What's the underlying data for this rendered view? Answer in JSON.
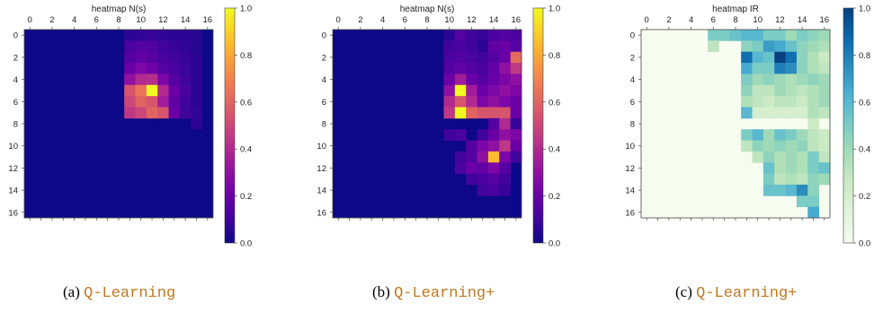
{
  "chart_data": [
    {
      "type": "heatmap",
      "title": "heatmap N(s)",
      "grid_size": 17,
      "x_ticks": [
        "0",
        "2",
        "4",
        "6",
        "8",
        "10",
        "12",
        "14",
        "16"
      ],
      "y_ticks": [
        "0",
        "2",
        "4",
        "6",
        "8",
        "10",
        "12",
        "14",
        "16"
      ],
      "colorbar_ticks": [
        "0.0",
        "0.2",
        "0.4",
        "0.6",
        "0.8",
        "1.0"
      ],
      "colormap": "plasma",
      "vmin": 0,
      "vmax": 1,
      "caption_label": "(a)",
      "caption_method": "Q-Learning",
      "cells": [
        [
          0,
          9,
          0.06
        ],
        [
          0,
          10,
          0.07
        ],
        [
          0,
          11,
          0.08
        ],
        [
          0,
          12,
          0.07
        ],
        [
          0,
          13,
          0.06
        ],
        [
          0,
          14,
          0.06
        ],
        [
          0,
          15,
          0.05
        ],
        [
          1,
          9,
          0.12
        ],
        [
          1,
          10,
          0.15
        ],
        [
          1,
          11,
          0.14
        ],
        [
          1,
          12,
          0.1
        ],
        [
          1,
          13,
          0.08
        ],
        [
          1,
          14,
          0.07
        ],
        [
          1,
          15,
          0.05
        ],
        [
          2,
          9,
          0.15
        ],
        [
          2,
          10,
          0.18
        ],
        [
          2,
          11,
          0.16
        ],
        [
          2,
          12,
          0.12
        ],
        [
          2,
          13,
          0.1
        ],
        [
          2,
          14,
          0.08
        ],
        [
          2,
          15,
          0.06
        ],
        [
          3,
          9,
          0.2
        ],
        [
          3,
          10,
          0.25
        ],
        [
          3,
          11,
          0.22
        ],
        [
          3,
          12,
          0.15
        ],
        [
          3,
          13,
          0.12
        ],
        [
          3,
          14,
          0.09
        ],
        [
          3,
          15,
          0.06
        ],
        [
          4,
          9,
          0.3
        ],
        [
          4,
          10,
          0.4
        ],
        [
          4,
          11,
          0.42
        ],
        [
          4,
          12,
          0.25
        ],
        [
          4,
          13,
          0.15
        ],
        [
          4,
          14,
          0.1
        ],
        [
          4,
          15,
          0.06
        ],
        [
          5,
          9,
          0.55
        ],
        [
          5,
          10,
          0.65
        ],
        [
          5,
          11,
          1.0
        ],
        [
          5,
          12,
          0.4
        ],
        [
          5,
          13,
          0.2
        ],
        [
          5,
          14,
          0.12
        ],
        [
          5,
          15,
          0.06
        ],
        [
          6,
          9,
          0.5
        ],
        [
          6,
          10,
          0.6
        ],
        [
          6,
          11,
          0.55
        ],
        [
          6,
          12,
          0.35
        ],
        [
          6,
          13,
          0.18
        ],
        [
          6,
          14,
          0.1
        ],
        [
          6,
          15,
          0.06
        ],
        [
          7,
          9,
          0.45
        ],
        [
          7,
          10,
          0.5
        ],
        [
          7,
          11,
          0.6
        ],
        [
          7,
          12,
          0.55
        ],
        [
          7,
          13,
          0.2
        ],
        [
          7,
          14,
          0.1
        ],
        [
          7,
          15,
          0.07
        ],
        [
          8,
          15,
          0.06
        ]
      ]
    },
    {
      "type": "heatmap",
      "title": "heatmap N(s)",
      "grid_size": 17,
      "x_ticks": [
        "0",
        "2",
        "4",
        "6",
        "8",
        "10",
        "12",
        "14",
        "16"
      ],
      "y_ticks": [
        "0",
        "2",
        "4",
        "6",
        "8",
        "10",
        "12",
        "14",
        "16"
      ],
      "colorbar_ticks": [
        "0.0",
        "0.2",
        "0.4",
        "0.6",
        "0.8",
        "1.0"
      ],
      "colormap": "plasma",
      "vmin": 0,
      "vmax": 1,
      "caption_label": "(b)",
      "caption_method": "Q-Learning+",
      "cells": [
        [
          0,
          10,
          0.06
        ],
        [
          0,
          11,
          0.15
        ],
        [
          0,
          12,
          0.1
        ],
        [
          0,
          13,
          0.08
        ],
        [
          0,
          14,
          0.12
        ],
        [
          0,
          15,
          0.14
        ],
        [
          0,
          16,
          0.12
        ],
        [
          1,
          10,
          0.1
        ],
        [
          1,
          11,
          0.12
        ],
        [
          1,
          12,
          0.1
        ],
        [
          1,
          13,
          0.06
        ],
        [
          1,
          14,
          0.18
        ],
        [
          1,
          15,
          0.2
        ],
        [
          1,
          16,
          0.15
        ],
        [
          2,
          10,
          0.12
        ],
        [
          2,
          11,
          0.14
        ],
        [
          2,
          12,
          0.12
        ],
        [
          2,
          13,
          0.1
        ],
        [
          2,
          14,
          0.15
        ],
        [
          2,
          15,
          0.2
        ],
        [
          2,
          16,
          0.62
        ],
        [
          3,
          10,
          0.15
        ],
        [
          3,
          11,
          0.18
        ],
        [
          3,
          12,
          0.15
        ],
        [
          3,
          13,
          0.12
        ],
        [
          3,
          14,
          0.18
        ],
        [
          3,
          15,
          0.3
        ],
        [
          3,
          16,
          0.45
        ],
        [
          4,
          10,
          0.2
        ],
        [
          4,
          11,
          0.35
        ],
        [
          4,
          12,
          0.2
        ],
        [
          4,
          13,
          0.15
        ],
        [
          4,
          14,
          0.2
        ],
        [
          4,
          15,
          0.25
        ],
        [
          4,
          16,
          0.3
        ],
        [
          5,
          10,
          0.3
        ],
        [
          5,
          11,
          1.0
        ],
        [
          5,
          12,
          0.35
        ],
        [
          5,
          13,
          0.2
        ],
        [
          5,
          14,
          0.25
        ],
        [
          5,
          15,
          0.3
        ],
        [
          5,
          16,
          0.25
        ],
        [
          6,
          10,
          0.4
        ],
        [
          6,
          11,
          0.55
        ],
        [
          6,
          12,
          0.4
        ],
        [
          6,
          13,
          0.25
        ],
        [
          6,
          14,
          0.3
        ],
        [
          6,
          15,
          0.25
        ],
        [
          6,
          16,
          0.2
        ],
        [
          7,
          10,
          0.45
        ],
        [
          7,
          11,
          1.0
        ],
        [
          7,
          12,
          0.6
        ],
        [
          7,
          13,
          0.55
        ],
        [
          7,
          14,
          0.55
        ],
        [
          7,
          15,
          0.55
        ],
        [
          7,
          16,
          0.2
        ],
        [
          8,
          14,
          0.15
        ],
        [
          8,
          15,
          0.4
        ],
        [
          8,
          16,
          0.08
        ],
        [
          9,
          10,
          0.1
        ],
        [
          9,
          11,
          0.12
        ],
        [
          9,
          13,
          0.1
        ],
        [
          9,
          14,
          0.2
        ],
        [
          9,
          15,
          0.3
        ],
        [
          9,
          16,
          0.25
        ],
        [
          10,
          12,
          0.15
        ],
        [
          10,
          13,
          0.25
        ],
        [
          10,
          14,
          0.3
        ],
        [
          10,
          15,
          0.45
        ],
        [
          10,
          16,
          0.2
        ],
        [
          11,
          11,
          0.1
        ],
        [
          11,
          12,
          0.15
        ],
        [
          11,
          13,
          0.3
        ],
        [
          11,
          14,
          0.85
        ],
        [
          11,
          15,
          0.25
        ],
        [
          11,
          16,
          0.1
        ],
        [
          12,
          11,
          0.12
        ],
        [
          12,
          12,
          0.2
        ],
        [
          12,
          13,
          0.18
        ],
        [
          12,
          14,
          0.25
        ],
        [
          12,
          15,
          0.15
        ],
        [
          13,
          12,
          0.1
        ],
        [
          13,
          13,
          0.12
        ],
        [
          13,
          14,
          0.15
        ],
        [
          13,
          15,
          0.1
        ],
        [
          14,
          13,
          0.1
        ],
        [
          14,
          14,
          0.12
        ],
        [
          14,
          15,
          0.08
        ]
      ]
    },
    {
      "type": "heatmap",
      "title": "heatmap IR",
      "grid_size": 17,
      "x_ticks": [
        "0",
        "2",
        "4",
        "6",
        "8",
        "10",
        "12",
        "14",
        "16"
      ],
      "y_ticks": [
        "0",
        "2",
        "4",
        "6",
        "8",
        "10",
        "12",
        "14",
        "16"
      ],
      "colorbar_ticks": [
        "0.0",
        "0.2",
        "0.4",
        "0.6",
        "0.8",
        "1.0"
      ],
      "colormap": "GnBu",
      "vmin": 0,
      "vmax": 1,
      "caption_label": "(c)",
      "caption_method": "Q-Learning+",
      "cells": [
        [
          0,
          6,
          0.5
        ],
        [
          0,
          7,
          0.5
        ],
        [
          0,
          8,
          0.55
        ],
        [
          0,
          9,
          0.6
        ],
        [
          0,
          10,
          0.6
        ],
        [
          0,
          11,
          0.5
        ],
        [
          0,
          12,
          0.5
        ],
        [
          0,
          13,
          0.4
        ],
        [
          0,
          14,
          0.5
        ],
        [
          0,
          15,
          0.45
        ],
        [
          0,
          16,
          0.4
        ],
        [
          1,
          6,
          0.3
        ],
        [
          1,
          9,
          0.45
        ],
        [
          1,
          10,
          0.5
        ],
        [
          1,
          11,
          0.7
        ],
        [
          1,
          12,
          0.65
        ],
        [
          1,
          13,
          0.55
        ],
        [
          1,
          14,
          0.45
        ],
        [
          1,
          15,
          0.4
        ],
        [
          1,
          16,
          0.35
        ],
        [
          2,
          9,
          0.85
        ],
        [
          2,
          10,
          0.6
        ],
        [
          2,
          11,
          0.55
        ],
        [
          2,
          12,
          1.0
        ],
        [
          2,
          13,
          0.85
        ],
        [
          2,
          14,
          0.45
        ],
        [
          2,
          15,
          0.35
        ],
        [
          2,
          16,
          0.25
        ],
        [
          3,
          9,
          0.65
        ],
        [
          3,
          10,
          0.5
        ],
        [
          3,
          11,
          0.5
        ],
        [
          3,
          12,
          0.8
        ],
        [
          3,
          13,
          0.75
        ],
        [
          3,
          14,
          0.45
        ],
        [
          3,
          15,
          0.35
        ],
        [
          3,
          16,
          0.3
        ],
        [
          4,
          9,
          0.5
        ],
        [
          4,
          10,
          0.4
        ],
        [
          4,
          11,
          0.45
        ],
        [
          4,
          12,
          0.4
        ],
        [
          4,
          13,
          0.35
        ],
        [
          4,
          14,
          0.4
        ],
        [
          4,
          15,
          0.45
        ],
        [
          4,
          16,
          0.4
        ],
        [
          5,
          9,
          0.45
        ],
        [
          5,
          10,
          0.3
        ],
        [
          5,
          11,
          0.3
        ],
        [
          5,
          12,
          0.4
        ],
        [
          5,
          13,
          0.35
        ],
        [
          5,
          14,
          0.3
        ],
        [
          5,
          15,
          0.35
        ],
        [
          5,
          16,
          0.4
        ],
        [
          6,
          9,
          0.35
        ],
        [
          6,
          10,
          0.3
        ],
        [
          6,
          11,
          0.25
        ],
        [
          6,
          12,
          0.3
        ],
        [
          6,
          13,
          0.3
        ],
        [
          6,
          14,
          0.25
        ],
        [
          6,
          15,
          0.35
        ],
        [
          6,
          16,
          0.4
        ],
        [
          7,
          9,
          0.6
        ],
        [
          7,
          10,
          0.2
        ],
        [
          7,
          11,
          0.2
        ],
        [
          7,
          12,
          0.2
        ],
        [
          7,
          13,
          0.2
        ],
        [
          7,
          14,
          0.2
        ],
        [
          7,
          15,
          0.35
        ],
        [
          7,
          16,
          0.3
        ],
        [
          8,
          15,
          0.25
        ],
        [
          9,
          9,
          0.5
        ],
        [
          9,
          10,
          0.6
        ],
        [
          9,
          11,
          0.4
        ],
        [
          9,
          12,
          0.55
        ],
        [
          9,
          13,
          0.5
        ],
        [
          9,
          14,
          0.4
        ],
        [
          9,
          15,
          0.3
        ],
        [
          9,
          16,
          0.25
        ],
        [
          10,
          9,
          0.3
        ],
        [
          10,
          10,
          0.45
        ],
        [
          10,
          11,
          0.4
        ],
        [
          10,
          12,
          0.45
        ],
        [
          10,
          13,
          0.4
        ],
        [
          10,
          14,
          0.45
        ],
        [
          10,
          15,
          0.3
        ],
        [
          10,
          16,
          0.25
        ],
        [
          11,
          10,
          0.3
        ],
        [
          11,
          11,
          0.45
        ],
        [
          11,
          12,
          0.35
        ],
        [
          11,
          13,
          0.4
        ],
        [
          11,
          14,
          0.35
        ],
        [
          11,
          15,
          0.5
        ],
        [
          11,
          16,
          0.3
        ],
        [
          12,
          11,
          0.55
        ],
        [
          12,
          12,
          0.35
        ],
        [
          12,
          13,
          0.4
        ],
        [
          12,
          14,
          0.35
        ],
        [
          12,
          15,
          0.5
        ],
        [
          12,
          16,
          0.55
        ],
        [
          13,
          11,
          0.5
        ],
        [
          13,
          12,
          0.3
        ],
        [
          13,
          13,
          0.35
        ],
        [
          13,
          14,
          0.3
        ],
        [
          13,
          15,
          0.45
        ],
        [
          13,
          16,
          0.4
        ],
        [
          14,
          11,
          0.55
        ],
        [
          14,
          12,
          0.55
        ],
        [
          14,
          13,
          0.6
        ],
        [
          14,
          14,
          0.75
        ],
        [
          14,
          15,
          0.45
        ],
        [
          15,
          14,
          0.5
        ],
        [
          15,
          15,
          0.5
        ],
        [
          16,
          15,
          0.65
        ]
      ]
    }
  ]
}
